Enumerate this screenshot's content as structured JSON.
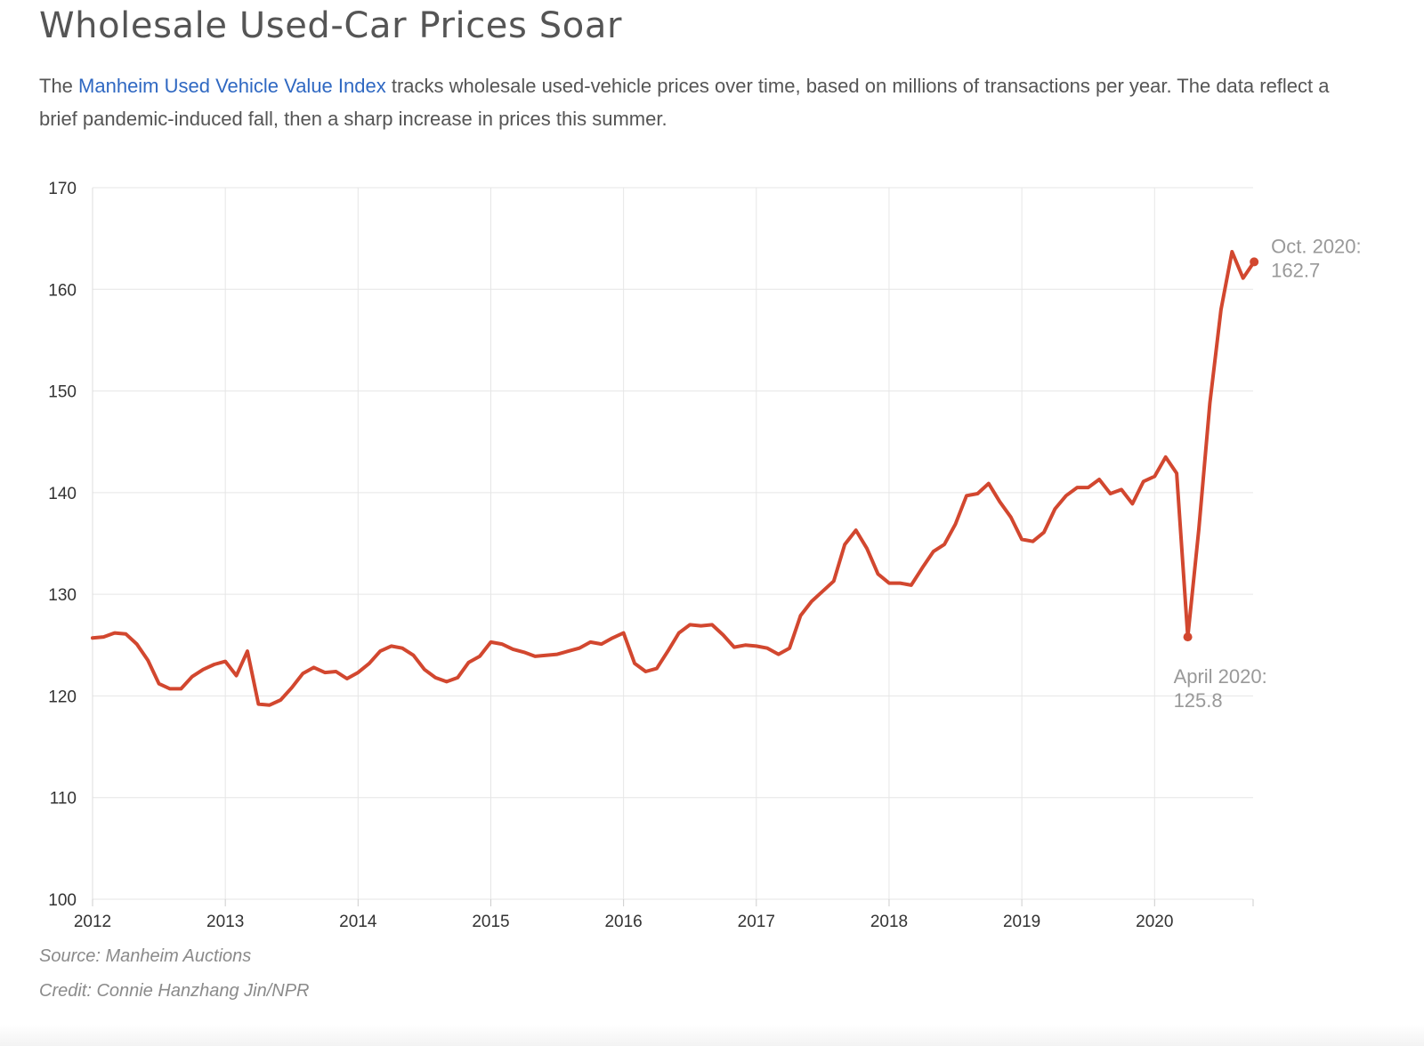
{
  "title": "Wholesale Used-Car Prices Soar",
  "description": {
    "prefix": "The ",
    "link_text": "Manheim Used Vehicle Value Index",
    "suffix": " tracks wholesale used-vehicle prices over time, based on millions of transactions per year. The data reflect a brief pandemic-induced fall, then a sharp increase in prices this summer."
  },
  "colors": {
    "line": "#d2472f",
    "grid": "#e6e6e6",
    "annotation": "#999999",
    "link": "#2f68c2"
  },
  "chart_data": {
    "type": "line",
    "title": "Wholesale Used-Car Prices Soar",
    "xlabel": "",
    "ylabel": "",
    "ylim": [
      100,
      170
    ],
    "yticks": [
      100,
      110,
      120,
      130,
      140,
      150,
      160,
      170
    ],
    "xticks": [
      "2012",
      "2013",
      "2014",
      "2015",
      "2016",
      "2017",
      "2018",
      "2019",
      "2020"
    ],
    "x_start": "Jan 2012",
    "x_end": "Oct 2020",
    "grid": true,
    "series": [
      {
        "name": "Manheim Used Vehicle Value Index",
        "values": [
          125.7,
          125.8,
          126.2,
          126.1,
          125.1,
          123.5,
          121.2,
          120.7,
          120.7,
          121.9,
          122.6,
          123.1,
          123.4,
          122.0,
          124.4,
          119.2,
          119.1,
          119.6,
          120.8,
          122.2,
          122.8,
          122.3,
          122.4,
          121.7,
          122.3,
          123.2,
          124.4,
          124.9,
          124.7,
          124.0,
          122.6,
          121.8,
          121.4,
          121.8,
          123.3,
          123.9,
          125.3,
          125.1,
          124.6,
          124.3,
          123.9,
          124.0,
          124.1,
          124.4,
          124.7,
          125.3,
          125.1,
          125.7,
          126.2,
          123.2,
          122.4,
          122.7,
          124.4,
          126.2,
          127.0,
          126.9,
          127.0,
          126.0,
          124.8,
          125.0,
          124.9,
          124.7,
          124.1,
          124.7,
          127.9,
          129.3,
          130.3,
          131.3,
          134.9,
          136.3,
          134.5,
          132.0,
          131.1,
          131.1,
          130.9,
          132.6,
          134.2,
          134.9,
          136.9,
          139.7,
          139.9,
          140.9,
          139.1,
          137.6,
          135.4,
          135.2,
          136.1,
          138.4,
          139.7,
          140.5,
          140.5,
          141.3,
          139.9,
          140.3,
          138.9,
          141.1,
          141.6,
          143.5,
          141.9,
          125.8,
          136.4,
          148.8,
          158.0,
          163.7,
          161.1,
          162.7
        ]
      }
    ],
    "annotations": [
      {
        "label": "April 2020:",
        "value": "125.8",
        "month_index": 99,
        "y": 125.8
      },
      {
        "label": "Oct. 2020:",
        "value": "162.7",
        "month_index": 105,
        "y": 162.7
      }
    ]
  },
  "footer": {
    "source": "Source: Manheim Auctions",
    "credit": "Credit: Connie Hanzhang Jin/NPR"
  }
}
